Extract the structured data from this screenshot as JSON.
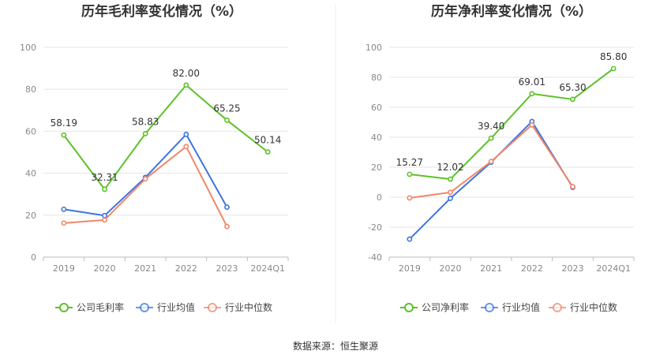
{
  "source_label": "数据来源：恒生聚源",
  "colors": {
    "company_gross": "#5cc228",
    "company_net": "#5cc228",
    "industry_avg": "#3c75e0",
    "industry_median": "#f0876a",
    "grid": "#e6e6e6",
    "axis": "#bbbbbb"
  },
  "chart_data": [
    {
      "type": "line",
      "title": "历年毛利率变化情况（%）",
      "categories": [
        "2019",
        "2020",
        "2021",
        "2022",
        "2023",
        "2024Q1"
      ],
      "ylim": [
        0,
        100
      ],
      "yticks": [
        0,
        20,
        40,
        60,
        80,
        100
      ],
      "grid": true,
      "legend": "bottom",
      "series": [
        {
          "name": "公司毛利率",
          "color_key": "company_gross",
          "values": [
            58.19,
            32.31,
            58.83,
            82.0,
            65.25,
            50.14
          ],
          "labels": [
            "58.19",
            "32.31",
            "58.83",
            "82.00",
            "65.25",
            "50.14"
          ]
        },
        {
          "name": "行业均值",
          "color_key": "industry_avg",
          "values": [
            22.8,
            19.8,
            38.0,
            58.5,
            23.8,
            null
          ]
        },
        {
          "name": "行业中位数",
          "color_key": "industry_median",
          "values": [
            16.2,
            17.7,
            37.3,
            52.7,
            14.6,
            null
          ]
        }
      ]
    },
    {
      "type": "line",
      "title": "历年净利率变化情况（%）",
      "categories": [
        "2019",
        "2020",
        "2021",
        "2022",
        "2023",
        "2024Q1"
      ],
      "ylim": [
        -40,
        100
      ],
      "yticks": [
        -40,
        -20,
        0,
        20,
        40,
        60,
        80,
        100
      ],
      "grid": true,
      "legend": "bottom",
      "series": [
        {
          "name": "公司净利率",
          "color_key": "company_net",
          "values": [
            15.27,
            12.02,
            39.4,
            69.01,
            65.3,
            85.8
          ],
          "labels": [
            "15.27",
            "12.02",
            "39.40",
            "69.01",
            "65.30",
            "85.80"
          ]
        },
        {
          "name": "行业均值",
          "color_key": "industry_avg",
          "values": [
            -28.0,
            -0.8,
            23.3,
            50.5,
            6.5,
            null
          ]
        },
        {
          "name": "行业中位数",
          "color_key": "industry_median",
          "values": [
            -0.5,
            3.2,
            23.8,
            48.2,
            7.0,
            null
          ]
        }
      ]
    }
  ]
}
